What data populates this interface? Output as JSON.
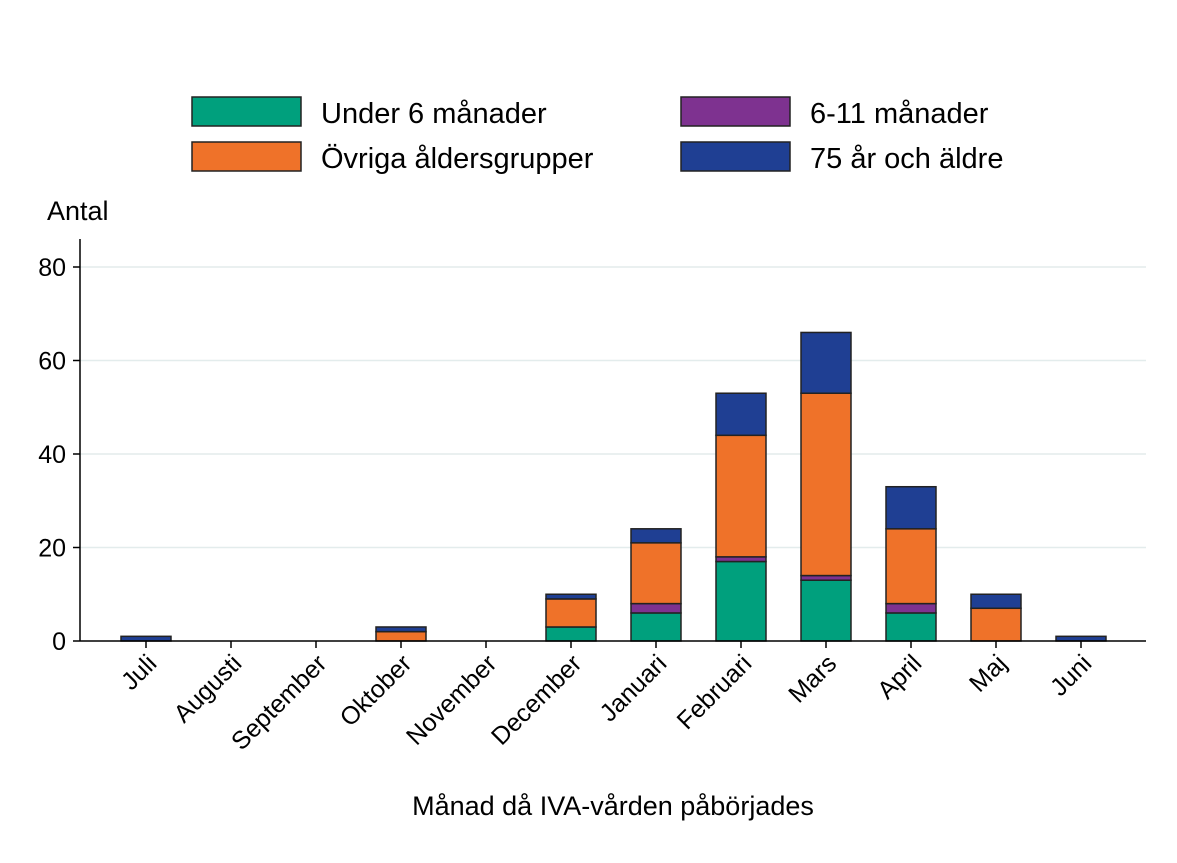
{
  "chart_data": {
    "type": "bar",
    "stacked": true,
    "title": "",
    "xlabel": "Månad då IVA-vården påbörjades",
    "ylabel": "Antal",
    "ylim": [
      0,
      86
    ],
    "yticks": [
      0,
      20,
      40,
      60,
      80
    ],
    "grid": true,
    "legend_position": "top",
    "categories": [
      "Juli",
      "Augusti",
      "September",
      "Oktober",
      "November",
      "December",
      "Januari",
      "Februari",
      "Mars",
      "April",
      "Maj",
      "Juni"
    ],
    "series": [
      {
        "name": "Under 6 månader",
        "color": "#00A07D",
        "values": [
          0,
          0,
          0,
          0,
          0,
          3,
          6,
          17,
          13,
          6,
          0,
          0
        ]
      },
      {
        "name": "6-11 månader",
        "color": "#7E3290",
        "values": [
          0,
          0,
          0,
          0,
          0,
          0,
          2,
          1,
          1,
          2,
          0,
          0
        ]
      },
      {
        "name": "Övriga åldersgrupper",
        "color": "#EF7229",
        "values": [
          0,
          0,
          0,
          2,
          0,
          6,
          13,
          26,
          39,
          16,
          7,
          0
        ]
      },
      {
        "name": "75 år och äldre",
        "color": "#1F3F93",
        "values": [
          1,
          0,
          0,
          1,
          0,
          1,
          3,
          9,
          13,
          9,
          3,
          1
        ]
      }
    ]
  }
}
